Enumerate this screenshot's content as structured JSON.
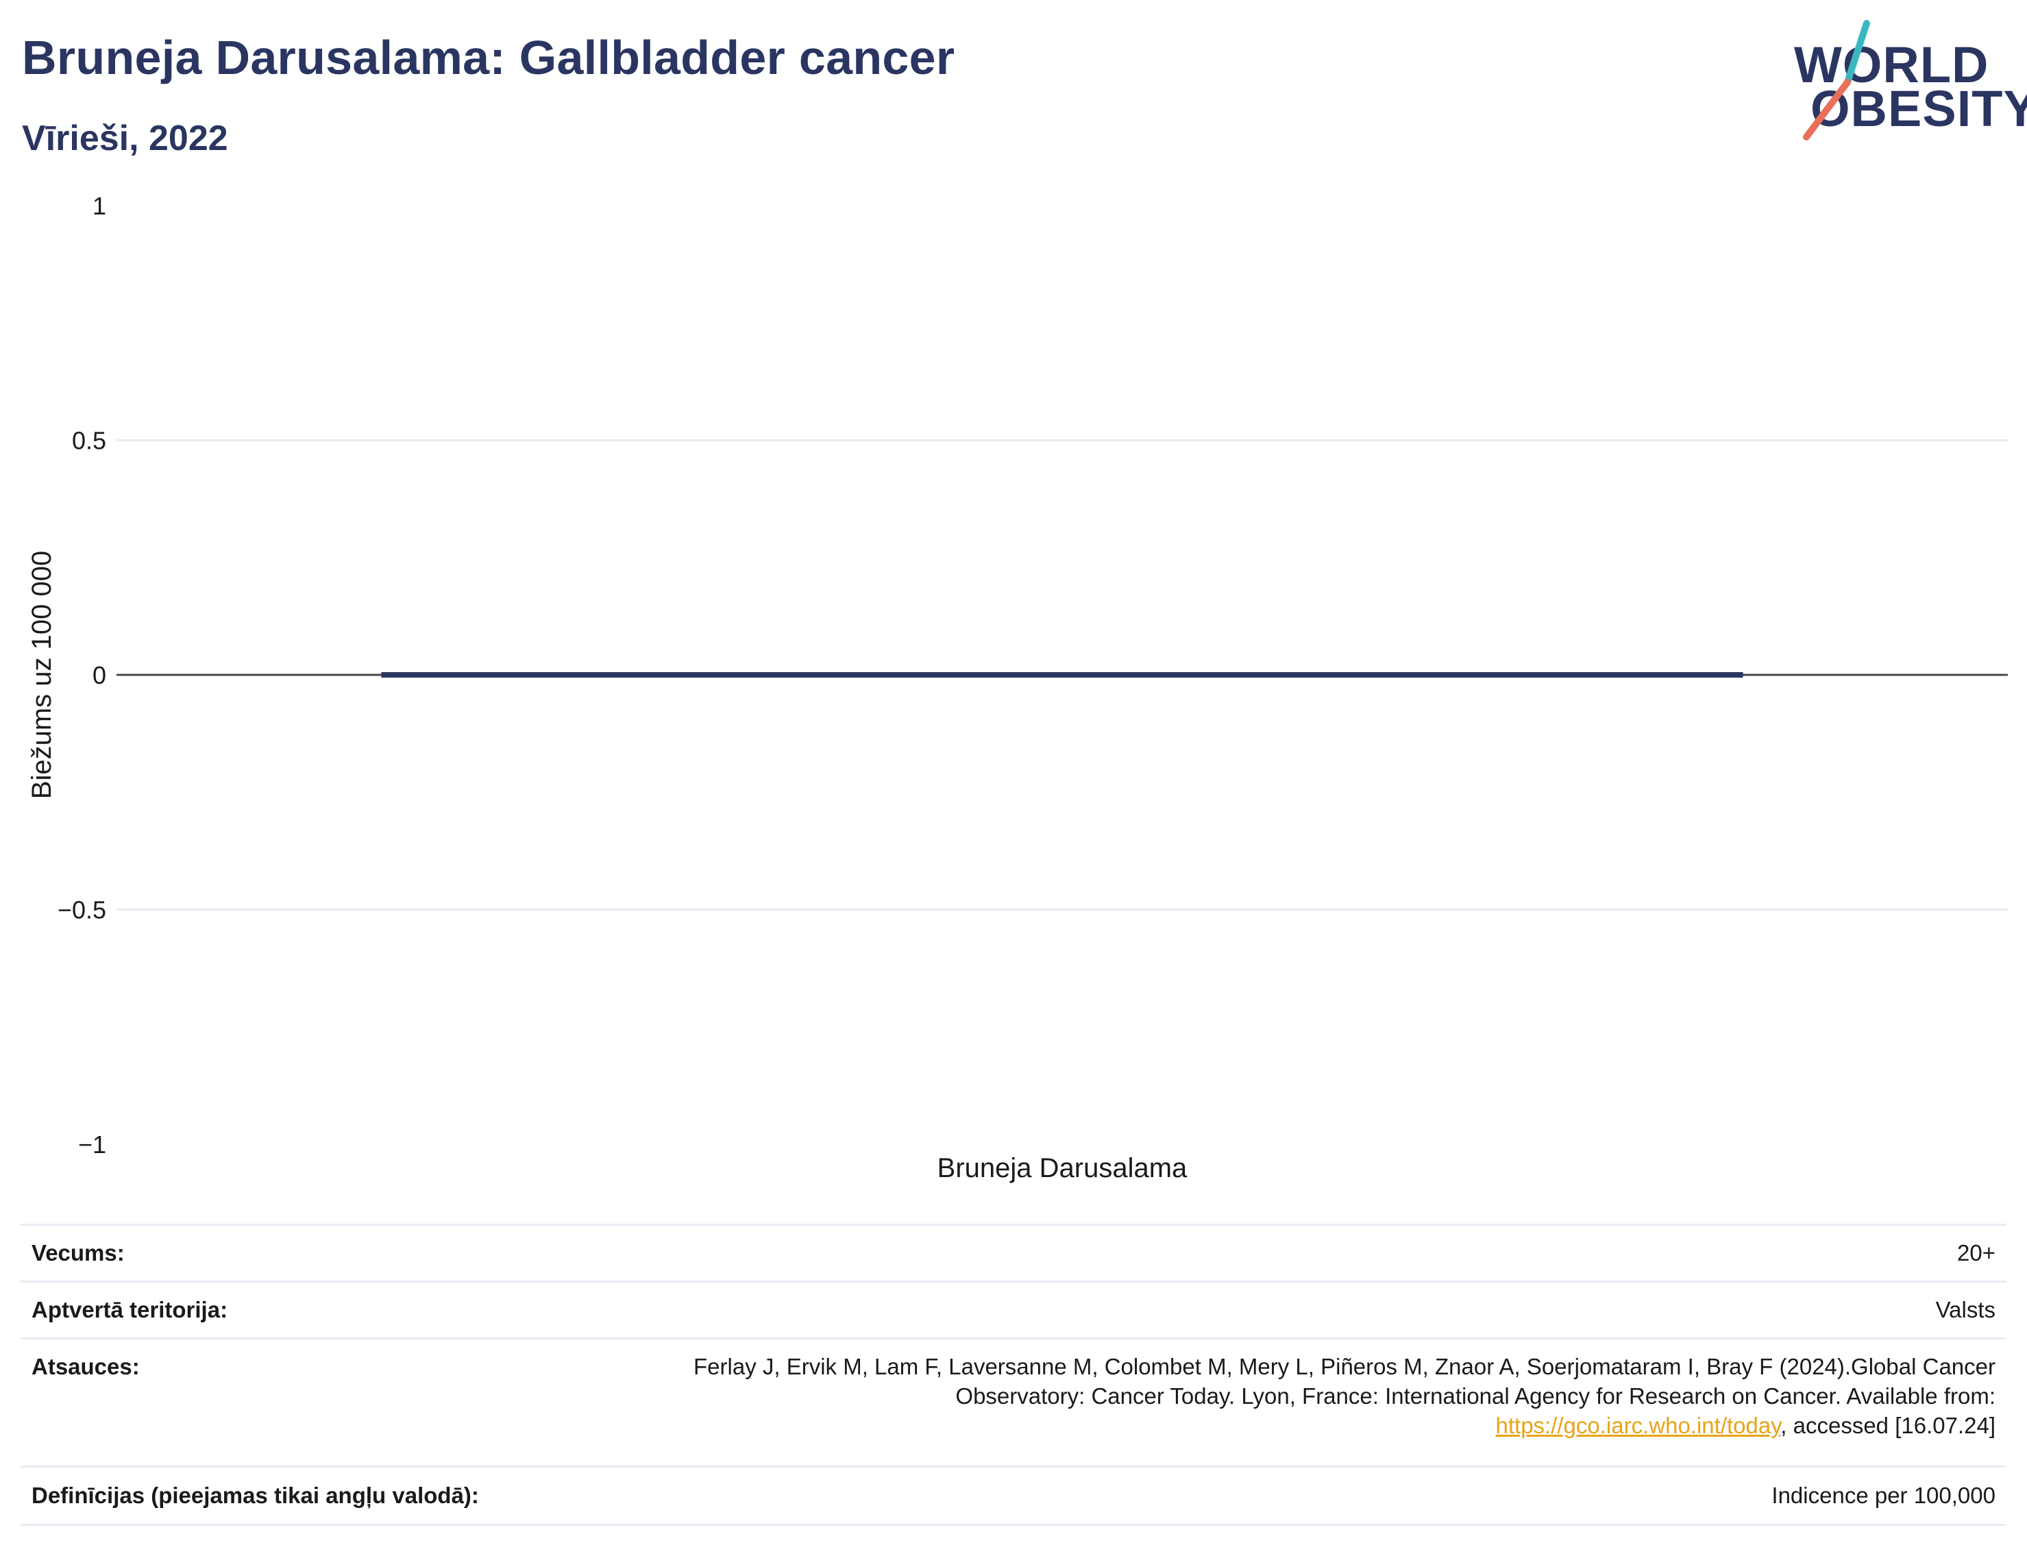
{
  "header": {
    "title": "Bruneja Darusalama: Gallbladder cancer",
    "subtitle": "Vīrieši, 2022"
  },
  "logo": {
    "line1": "WORLD",
    "line2": "OBESITY",
    "slash_colors": [
      "#3bb8bf",
      "#e8705a"
    ]
  },
  "colors": {
    "text": "#2b3561",
    "bar": "#2b3561",
    "grid": "#e6ecf3",
    "zero_line": "#4a4a4a",
    "link": "#e8a317"
  },
  "chart_data": {
    "type": "bar",
    "categories": [
      "Bruneja Darusalama"
    ],
    "values": [
      0
    ],
    "ylabel": "Biežums uz 100 000",
    "xlabel": "",
    "ylim": [
      -1,
      1
    ],
    "yticks": [
      1,
      0.5,
      0,
      -0.5,
      -1
    ],
    "ytick_labels": [
      "1",
      "0.5",
      "0",
      "−0.5",
      "−1"
    ],
    "grid": true,
    "legend": "none"
  },
  "info": {
    "rows": [
      {
        "label": "Vecums:",
        "value": "20+"
      },
      {
        "label": "Aptvertā teritorija:",
        "value": "Valsts"
      },
      {
        "label": "Atsauces:",
        "value_before": "Ferlay J, Ervik M, Lam F, Laversanne M, Colombet M, Mery L, Piñeros M, Znaor A, Soerjomataram I, Bray F (2024).Global Cancer Observatory: Cancer Today. Lyon, France: International Agency for Research on Cancer. Available from: ",
        "link": "https://gco.iarc.who.int/today",
        "value_after": ", accessed [16.07.24]"
      },
      {
        "label": "Definīcijas (pieejamas tikai angļu valodā):",
        "value": "Indicence per 100,000"
      }
    ]
  }
}
